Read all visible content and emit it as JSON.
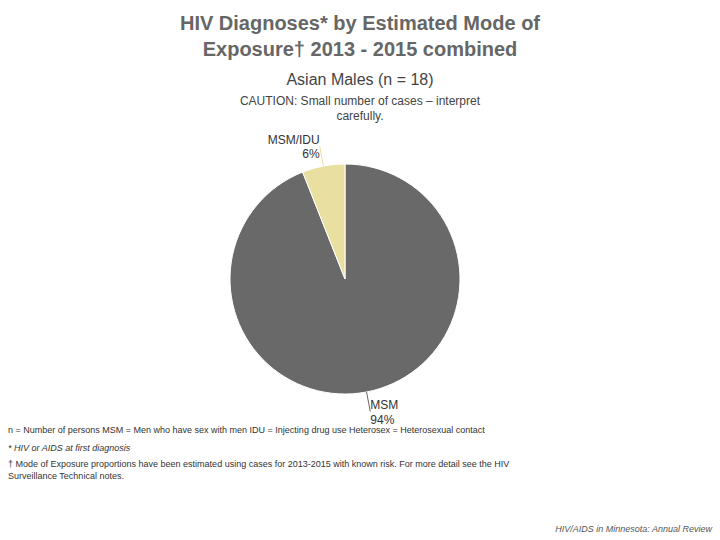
{
  "chart_data": {
    "type": "pie",
    "title": "HIV Diagnoses* by Estimated Mode of\nExposure† 2013 - 2015 combined",
    "subtitle": "Asian Males (n = 18)",
    "categories": [
      "MSM",
      "MSM/IDU"
    ],
    "values": [
      94,
      6
    ],
    "value_labels": [
      "94%",
      "6%"
    ],
    "colors": [
      "#696969",
      "#e8dfa0"
    ],
    "data_labels": true,
    "annotations": [
      "CAUTION: Small number of cases – interpret\ncarefully.",
      "n = Number of persons    MSM = Men who have sex with men     IDU = Injecting drug use     Heterosex = Heterosexual contact",
      "* HIV or AIDS at first diagnosis",
      "† Mode of Exposure proportions have been estimated using cases for 2013-2015 with known risk. For more detail see the HIV\nSurveillance Technical notes.",
      "HIV/AIDS in Minnesota: Annual Review"
    ]
  }
}
